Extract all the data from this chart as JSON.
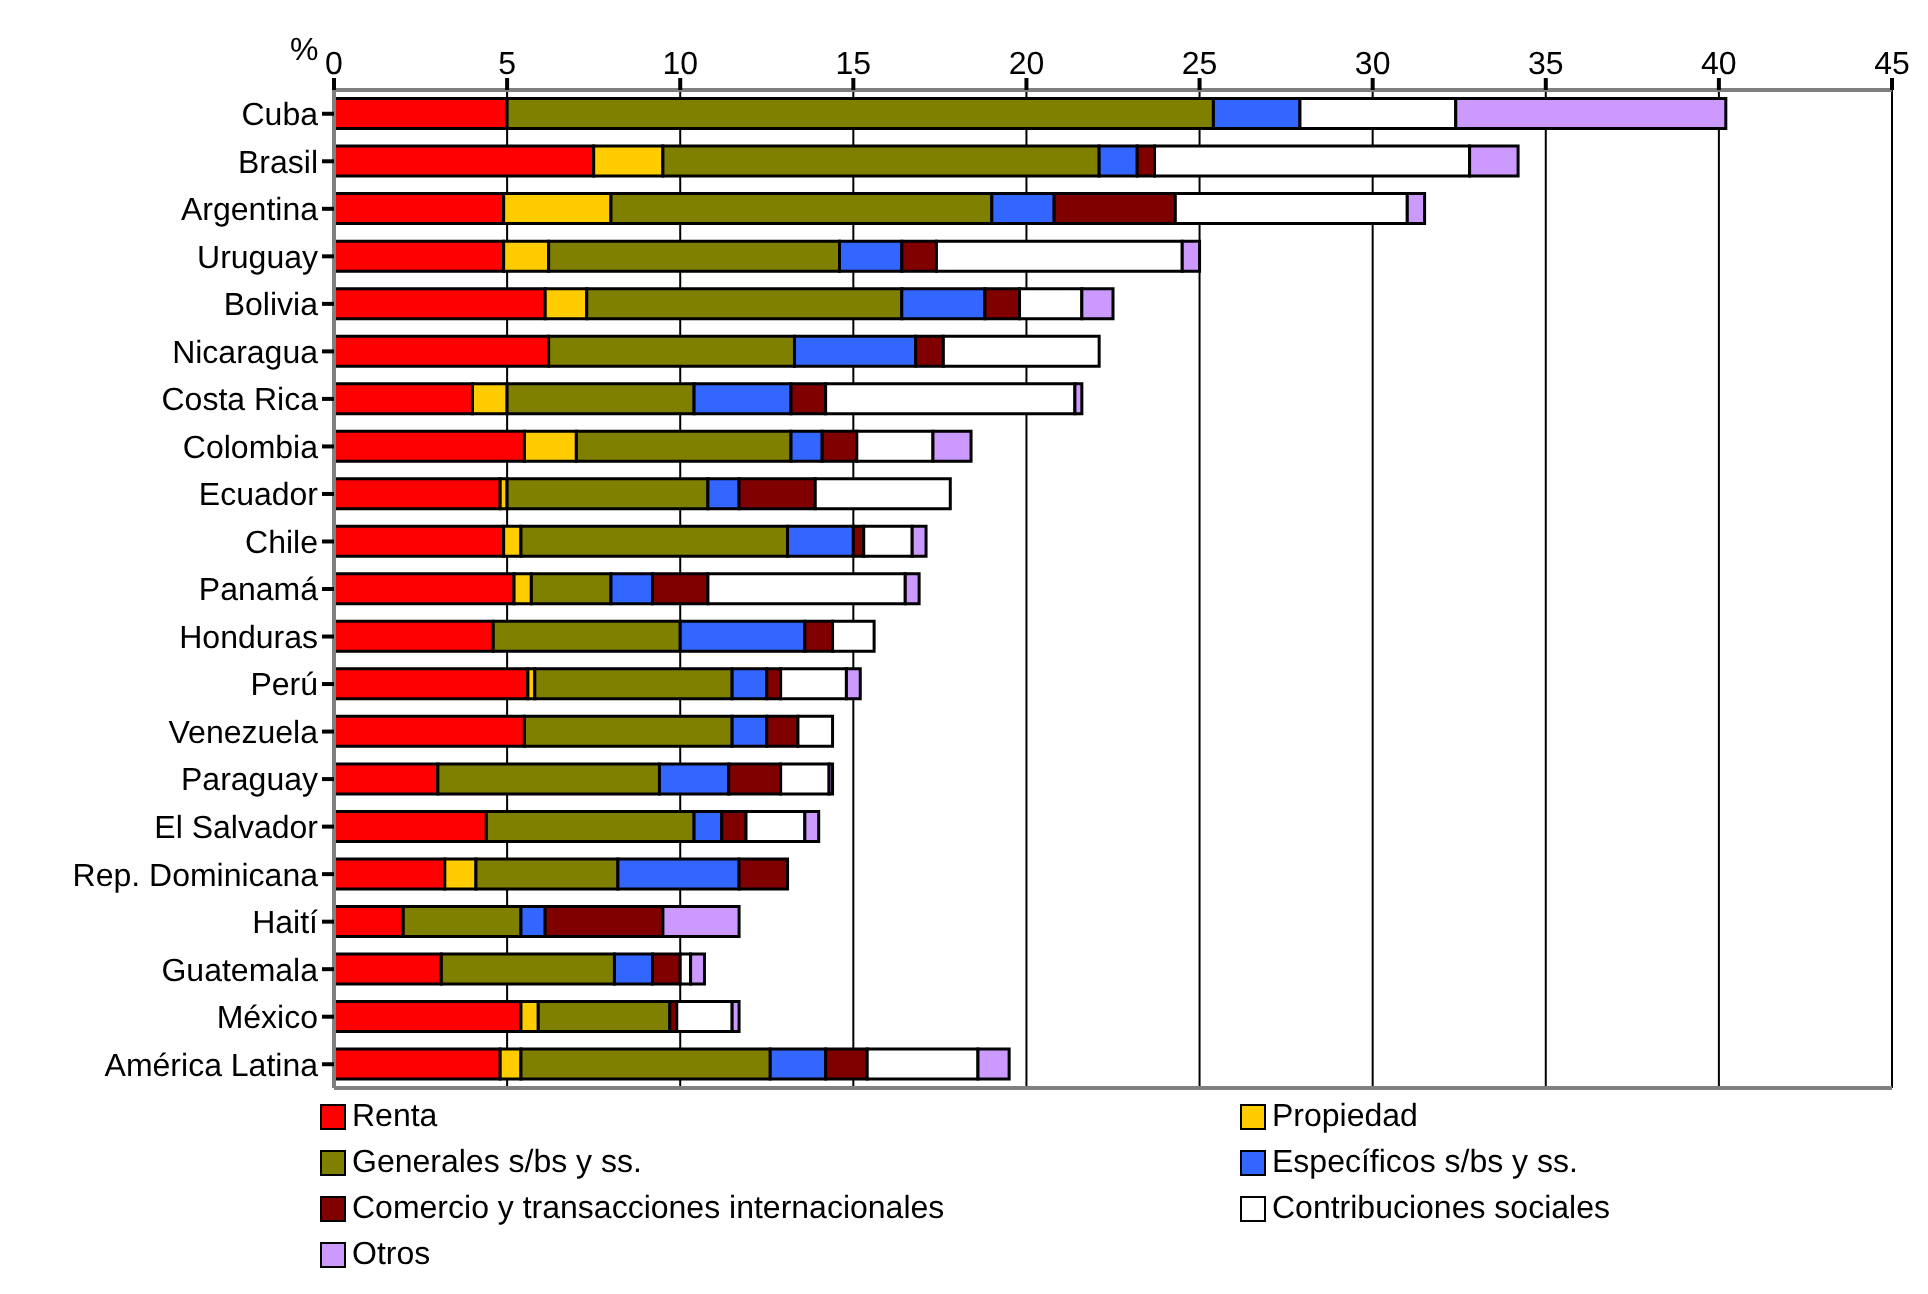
{
  "chart_data": {
    "type": "bar",
    "orientation": "horizontal",
    "stacked": true,
    "xlabel": "%",
    "categories": [
      "Cuba",
      "Brasil",
      "Argentina",
      "Uruguay",
      "Bolivia",
      "Nicaragua",
      "Costa Rica",
      "Colombia",
      "Ecuador",
      "Chile",
      "Panamá",
      "Honduras",
      "Perú",
      "Venezuela",
      "Paraguay",
      "El Salvador",
      "Rep. Dominicana",
      "Haití",
      "Guatemala",
      "México",
      "América Latina"
    ],
    "xlim": [
      0,
      45
    ],
    "xticks": [
      0,
      5,
      10,
      15,
      20,
      25,
      30,
      35,
      40,
      45
    ],
    "grid": "x",
    "legend": "bottom",
    "series": [
      {
        "name": "Renta",
        "color": "#ff0000",
        "values": [
          5.0,
          7.5,
          4.9,
          4.9,
          6.1,
          6.2,
          4.0,
          5.5,
          4.8,
          4.9,
          5.2,
          4.6,
          5.6,
          5.5,
          3.0,
          4.4,
          3.2,
          2.0,
          3.1,
          5.4,
          4.8
        ]
      },
      {
        "name": "Propiedad",
        "color": "#ffcc00",
        "values": [
          null,
          2.0,
          3.1,
          1.3,
          1.2,
          null,
          1.0,
          1.5,
          0.2,
          0.5,
          0.5,
          null,
          0.2,
          null,
          null,
          null,
          0.9,
          null,
          null,
          0.5,
          0.6
        ]
      },
      {
        "name": "Generales s/bs y ss.",
        "color": "#808000",
        "values": [
          20.4,
          12.6,
          11.0,
          8.4,
          9.1,
          7.1,
          5.4,
          6.2,
          5.8,
          7.7,
          2.3,
          5.4,
          5.7,
          6.0,
          6.4,
          6.0,
          4.1,
          3.4,
          5.0,
          3.8,
          7.2
        ]
      },
      {
        "name": "Específicos s/bs y ss.",
        "color": "#3366ff",
        "values": [
          2.5,
          1.1,
          1.8,
          1.8,
          2.4,
          3.5,
          2.8,
          0.9,
          0.9,
          1.9,
          1.2,
          3.6,
          1.0,
          1.0,
          2.0,
          0.8,
          3.5,
          0.7,
          1.1,
          null,
          1.6
        ]
      },
      {
        "name": "Comercio y transacciones internacionales",
        "color": "#800000",
        "values": [
          null,
          0.5,
          3.5,
          1.0,
          1.0,
          0.8,
          1.0,
          1.0,
          2.2,
          0.3,
          1.6,
          0.8,
          0.4,
          0.9,
          1.5,
          0.7,
          1.4,
          3.4,
          0.8,
          0.2,
          1.2
        ]
      },
      {
        "name": "Contribuciones sociales",
        "color": "#ffffff",
        "values": [
          4.5,
          9.1,
          6.7,
          7.1,
          1.8,
          4.5,
          7.2,
          2.2,
          3.9,
          1.4,
          5.7,
          1.2,
          1.9,
          1.0,
          1.4,
          1.7,
          null,
          null,
          0.3,
          1.6,
          3.2
        ]
      },
      {
        "name": "Otros",
        "color": "#cc99ff",
        "values": [
          7.8,
          1.4,
          0.5,
          0.5,
          0.9,
          null,
          0.2,
          1.1,
          null,
          0.4,
          0.4,
          null,
          0.4,
          null,
          0.1,
          0.4,
          null,
          2.2,
          0.4,
          0.2,
          0.9
        ]
      }
    ]
  }
}
